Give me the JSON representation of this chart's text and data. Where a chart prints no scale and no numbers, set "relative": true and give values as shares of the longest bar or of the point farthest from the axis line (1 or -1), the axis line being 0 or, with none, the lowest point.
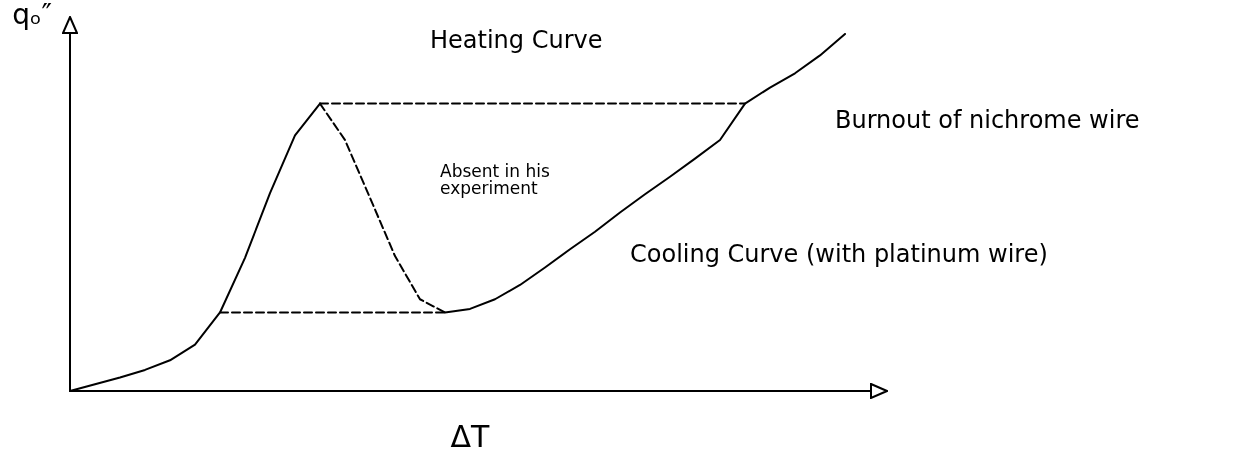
{
  "chart_data": {
    "type": "line",
    "relative": true,
    "xlabel": "ΔT",
    "ylabel": "qₒ″",
    "categories": [
      null,
      null,
      null,
      null,
      null,
      null,
      null,
      null,
      null,
      null,
      null,
      null,
      null,
      null,
      null,
      null,
      null,
      null,
      null,
      null,
      null,
      null,
      null,
      null,
      null,
      null,
      null,
      null,
      null,
      null,
      null,
      null,
      null
    ],
    "series": [
      {
        "color": "#000000",
        "line_style": "solid",
        "values": [
          0,
          0.019,
          0.038,
          0.059,
          0.086,
          0.13,
          0.22,
          0.373,
          0.554,
          0.716,
          0.805,
          null,
          null,
          null,
          null,
          null,
          null,
          null,
          null,
          null,
          null,
          null,
          null,
          null,
          null,
          null,
          null,
          null,
          null,
          null,
          null,
          null,
          null
        ]
      },
      {
        "color": "#000000",
        "line_style": "solid",
        "values": [
          null,
          null,
          null,
          null,
          null,
          null,
          null,
          null,
          null,
          null,
          null,
          null,
          null,
          null,
          null,
          0.22,
          0.23,
          0.257,
          0.297,
          0.346,
          0.397,
          0.446,
          0.5,
          0.551,
          0.6,
          0.651,
          0.703,
          0.805,
          0.85,
          0.89,
          0.94,
          1,
          null
        ]
      },
      {
        "color": "#000000",
        "line_style": "dashed",
        "values": [
          null,
          null,
          null,
          null,
          null,
          null,
          null,
          null,
          null,
          null,
          0.805,
          0.703,
          0.541,
          0.378,
          0.257,
          0.22,
          null,
          null,
          null,
          null,
          null,
          null,
          null,
          null,
          null,
          null,
          null,
          null,
          null,
          null,
          null,
          null,
          null
        ]
      },
      {
        "color": "#000000",
        "line_style": "dashed",
        "values": [
          null,
          null,
          null,
          null,
          null,
          null,
          null,
          null,
          null,
          null,
          0.805,
          0.805,
          0.805,
          0.805,
          0.805,
          0.805,
          0.805,
          0.805,
          0.805,
          0.805,
          0.805,
          0.805,
          0.805,
          0.805,
          0.805,
          0.805,
          0.805,
          0.805,
          null,
          null,
          null,
          null,
          null
        ]
      },
      {
        "color": "#000000",
        "line_style": "dashed",
        "values": [
          null,
          null,
          null,
          null,
          null,
          null,
          0.22,
          0.22,
          0.22,
          0.22,
          0.22,
          0.22,
          0.22,
          0.22,
          0.22,
          0.22,
          null,
          null,
          null,
          null,
          null,
          null,
          null,
          null,
          null,
          null,
          null,
          null,
          null,
          null,
          null,
          null,
          null
        ]
      }
    ],
    "annotations": [
      "Heating Curve",
      "Absent in his experiment",
      "Burnout of nichrome wire",
      "Cooling Curve (with platinum wire)"
    ]
  }
}
